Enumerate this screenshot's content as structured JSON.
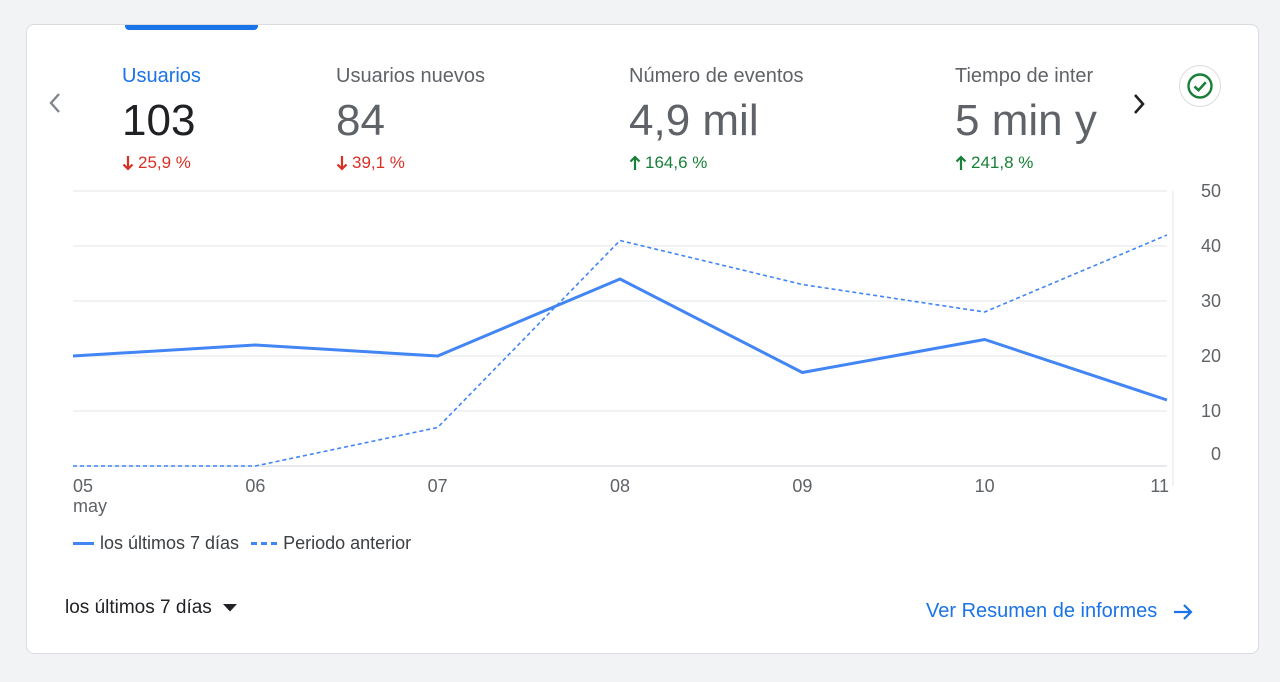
{
  "metrics": [
    {
      "label": "Usuarios",
      "value": "103",
      "delta": "25,9 %",
      "direction": "down",
      "active": true
    },
    {
      "label": "Usuarios nuevos",
      "value": "84",
      "delta": "39,1 %",
      "direction": "down",
      "active": false
    },
    {
      "label": "Número de eventos",
      "value": "4,9 mil",
      "delta": "164,6 %",
      "direction": "up",
      "active": false
    },
    {
      "label": "Tiempo de inter",
      "value": "5 min y",
      "delta": "241,8 %",
      "direction": "up",
      "active": false
    }
  ],
  "colors": {
    "accent": "#1a73e8",
    "series": "#4285f4",
    "down": "#d93025",
    "up": "#188038",
    "check": "#188038"
  },
  "icons": {
    "prev": "chevron-left-icon",
    "next": "chevron-right-icon",
    "status": "check-circle-icon",
    "dropdown": "caret-down-icon",
    "link": "arrow-right-icon"
  },
  "chart_data": {
    "type": "line",
    "x": [
      "05\nmay",
      "06",
      "07",
      "08",
      "09",
      "10",
      "11"
    ],
    "series": [
      {
        "name": "los últimos 7 días",
        "style": "solid",
        "values": [
          20,
          22,
          20,
          34,
          17,
          23,
          12
        ]
      },
      {
        "name": "Periodo anterior",
        "style": "dashed",
        "values": [
          0,
          0,
          7,
          41,
          33,
          28,
          42
        ]
      }
    ],
    "yticks": [
      "50",
      "40",
      "30",
      "20",
      "10",
      "0"
    ],
    "ylim": [
      0,
      50
    ],
    "grid": true,
    "legend": "bottom-left"
  },
  "legend": {
    "current": "los últimos 7 días",
    "previous": "Periodo anterior"
  },
  "footer": {
    "range_label": "los últimos 7 días",
    "report_link": "Ver Resumen de informes"
  }
}
